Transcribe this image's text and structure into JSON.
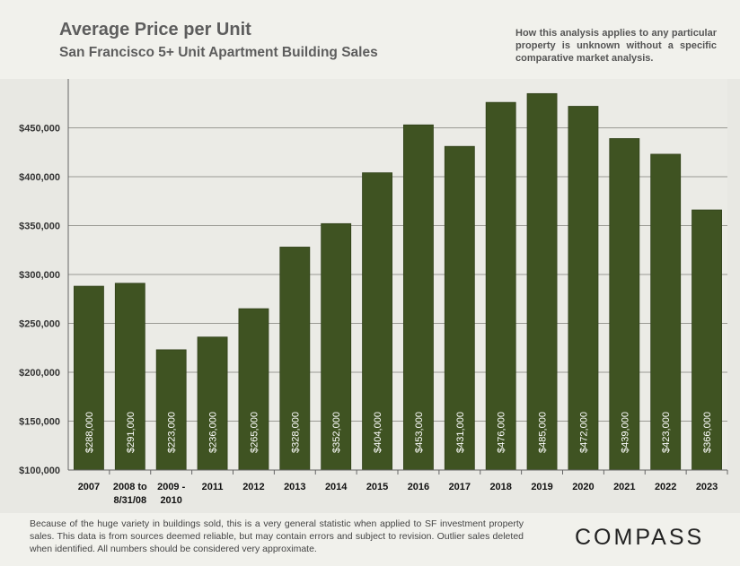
{
  "header": {
    "title": "Average Price per Unit",
    "subtitle": "San Francisco 5+ Unit Apartment Building Sales",
    "disclaimer": "How this analysis applies to any particular property is unknown without a specific comparative market analysis."
  },
  "footer": {
    "note": "Because of the huge variety in buildings sold, this is a very general statistic when applied to SF investment property sales. This data is from sources deemed reliable, but may contain errors and subject to revision. Outlier sales deleted when identified. All numbers should be considered very approximate.",
    "logo": "COMPASS"
  },
  "colors": {
    "bar": "#3f5322",
    "bar_edge": "#2f3f18",
    "grid": "#9a9a94",
    "axis": "#666666"
  },
  "chart_data": {
    "type": "bar",
    "title": "Average Price per Unit",
    "subtitle": "San Francisco 5+ Unit Apartment Building Sales",
    "xlabel": "",
    "ylabel": "",
    "ylim": [
      100000,
      500000
    ],
    "yticks": [
      100000,
      150000,
      200000,
      250000,
      300000,
      350000,
      400000,
      450000
    ],
    "ytick_labels": [
      "$100,000",
      "$150,000",
      "$200,000",
      "$250,000",
      "$300,000",
      "$350,000",
      "$400,000",
      "$450,000"
    ],
    "grid": true,
    "categories": [
      [
        "2007"
      ],
      [
        "2008 to",
        "8/31/08"
      ],
      [
        "2009 -",
        "2010"
      ],
      [
        "2011"
      ],
      [
        "2012"
      ],
      [
        "2013"
      ],
      [
        "2014"
      ],
      [
        "2015"
      ],
      [
        "2016"
      ],
      [
        "2017"
      ],
      [
        "2018"
      ],
      [
        "2019"
      ],
      [
        "2020"
      ],
      [
        "2021"
      ],
      [
        "2022"
      ],
      [
        "2023"
      ]
    ],
    "values": [
      288000,
      291000,
      223000,
      236000,
      265000,
      328000,
      352000,
      404000,
      453000,
      431000,
      476000,
      485000,
      472000,
      439000,
      423000,
      366000
    ],
    "data_labels": [
      "$288,000",
      "$291,000",
      "$223,000",
      "$236,000",
      "$265,000",
      "$328,000",
      "$352,000",
      "$404,000",
      "$453,000",
      "$431,000",
      "$476,000",
      "$485,000",
      "$472,000",
      "$439,000",
      "$423,000",
      "$366,000"
    ]
  }
}
